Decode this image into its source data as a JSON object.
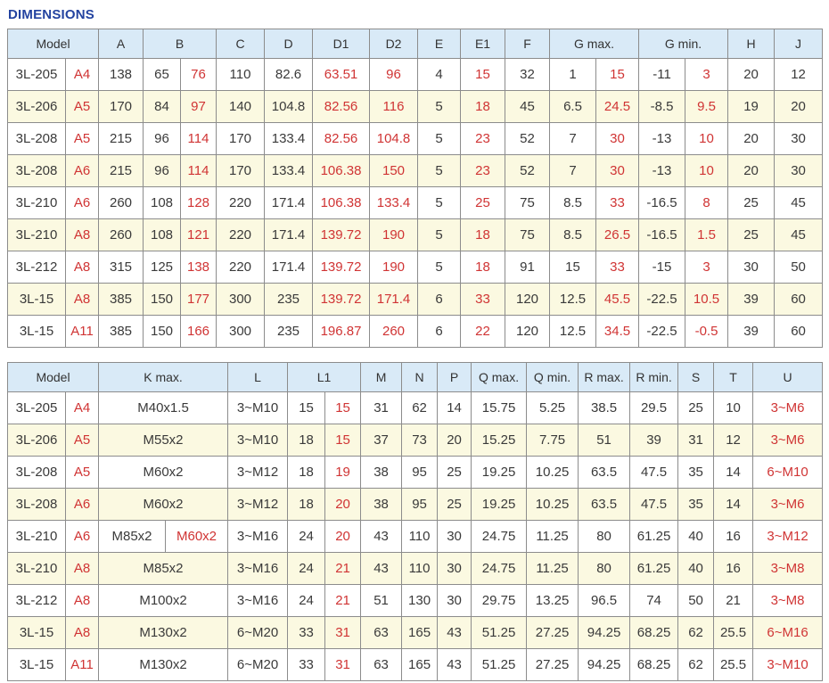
{
  "page": {
    "title": "DIMENSIONS"
  },
  "colors": {
    "title_blue": "#2343A0",
    "header_bg": "#D9EAF7",
    "row_alt_bg": "#FBF9E1",
    "border": "#8C8C8C",
    "text": "#3A3A3A",
    "highlight_red": "#D03434"
  },
  "table1": {
    "header": [
      {
        "label": "Model",
        "colspan": 2
      },
      {
        "label": "A"
      },
      {
        "label": "B",
        "colspan": 2
      },
      {
        "label": "C"
      },
      {
        "label": "D"
      },
      {
        "label": "D1"
      },
      {
        "label": "D2"
      },
      {
        "label": "E"
      },
      {
        "label": "E1"
      },
      {
        "label": "F"
      },
      {
        "label": "G max.",
        "colspan": 2
      },
      {
        "label": "G min.",
        "colspan": 2
      },
      {
        "label": "H"
      },
      {
        "label": "J"
      }
    ],
    "rows": [
      [
        {
          "t": "3L-205"
        },
        {
          "t": "A4",
          "red": true
        },
        {
          "t": "138"
        },
        {
          "t": "65"
        },
        {
          "t": "76",
          "red": true
        },
        {
          "t": "110"
        },
        {
          "t": "82.6"
        },
        {
          "t": "63.51",
          "red": true
        },
        {
          "t": "96",
          "red": true
        },
        {
          "t": "4"
        },
        {
          "t": "15",
          "red": true
        },
        {
          "t": "32"
        },
        {
          "t": "1"
        },
        {
          "t": "15",
          "red": true
        },
        {
          "t": "-11"
        },
        {
          "t": "3",
          "red": true
        },
        {
          "t": "20"
        },
        {
          "t": "12"
        }
      ],
      [
        {
          "t": "3L-206"
        },
        {
          "t": "A5",
          "red": true
        },
        {
          "t": "170"
        },
        {
          "t": "84"
        },
        {
          "t": "97",
          "red": true
        },
        {
          "t": "140"
        },
        {
          "t": "104.8"
        },
        {
          "t": "82.56",
          "red": true
        },
        {
          "t": "116",
          "red": true
        },
        {
          "t": "5"
        },
        {
          "t": "18",
          "red": true
        },
        {
          "t": "45"
        },
        {
          "t": "6.5"
        },
        {
          "t": "24.5",
          "red": true
        },
        {
          "t": "-8.5"
        },
        {
          "t": "9.5",
          "red": true
        },
        {
          "t": "19"
        },
        {
          "t": "20"
        }
      ],
      [
        {
          "t": "3L-208"
        },
        {
          "t": "A5",
          "red": true
        },
        {
          "t": "215"
        },
        {
          "t": "96"
        },
        {
          "t": "114",
          "red": true
        },
        {
          "t": "170"
        },
        {
          "t": "133.4"
        },
        {
          "t": "82.56",
          "red": true
        },
        {
          "t": "104.8",
          "red": true
        },
        {
          "t": "5"
        },
        {
          "t": "23",
          "red": true
        },
        {
          "t": "52"
        },
        {
          "t": "7"
        },
        {
          "t": "30",
          "red": true
        },
        {
          "t": "-13"
        },
        {
          "t": "10",
          "red": true
        },
        {
          "t": "20"
        },
        {
          "t": "30"
        }
      ],
      [
        {
          "t": "3L-208"
        },
        {
          "t": "A6",
          "red": true
        },
        {
          "t": "215"
        },
        {
          "t": "96"
        },
        {
          "t": "114",
          "red": true
        },
        {
          "t": "170"
        },
        {
          "t": "133.4"
        },
        {
          "t": "106.38",
          "red": true
        },
        {
          "t": "150",
          "red": true
        },
        {
          "t": "5"
        },
        {
          "t": "23",
          "red": true
        },
        {
          "t": "52"
        },
        {
          "t": "7"
        },
        {
          "t": "30",
          "red": true
        },
        {
          "t": "-13"
        },
        {
          "t": "10",
          "red": true
        },
        {
          "t": "20"
        },
        {
          "t": "30"
        }
      ],
      [
        {
          "t": "3L-210"
        },
        {
          "t": "A6",
          "red": true
        },
        {
          "t": "260"
        },
        {
          "t": "108"
        },
        {
          "t": "128",
          "red": true
        },
        {
          "t": "220"
        },
        {
          "t": "171.4"
        },
        {
          "t": "106.38",
          "red": true
        },
        {
          "t": "133.4",
          "red": true
        },
        {
          "t": "5"
        },
        {
          "t": "25",
          "red": true
        },
        {
          "t": "75"
        },
        {
          "t": "8.5"
        },
        {
          "t": "33",
          "red": true
        },
        {
          "t": "-16.5"
        },
        {
          "t": "8",
          "red": true
        },
        {
          "t": "25"
        },
        {
          "t": "45"
        }
      ],
      [
        {
          "t": "3L-210"
        },
        {
          "t": "A8",
          "red": true
        },
        {
          "t": "260"
        },
        {
          "t": "108"
        },
        {
          "t": "121",
          "red": true
        },
        {
          "t": "220"
        },
        {
          "t": "171.4"
        },
        {
          "t": "139.72",
          "red": true
        },
        {
          "t": "190",
          "red": true
        },
        {
          "t": "5"
        },
        {
          "t": "18",
          "red": true
        },
        {
          "t": "75"
        },
        {
          "t": "8.5"
        },
        {
          "t": "26.5",
          "red": true
        },
        {
          "t": "-16.5"
        },
        {
          "t": "1.5",
          "red": true
        },
        {
          "t": "25"
        },
        {
          "t": "45"
        }
      ],
      [
        {
          "t": "3L-212"
        },
        {
          "t": "A8",
          "red": true
        },
        {
          "t": "315"
        },
        {
          "t": "125"
        },
        {
          "t": "138",
          "red": true
        },
        {
          "t": "220"
        },
        {
          "t": "171.4"
        },
        {
          "t": "139.72",
          "red": true
        },
        {
          "t": "190",
          "red": true
        },
        {
          "t": "5"
        },
        {
          "t": "18",
          "red": true
        },
        {
          "t": "91"
        },
        {
          "t": "15"
        },
        {
          "t": "33",
          "red": true
        },
        {
          "t": "-15"
        },
        {
          "t": "3",
          "red": true
        },
        {
          "t": "30"
        },
        {
          "t": "50"
        }
      ],
      [
        {
          "t": "3L-15"
        },
        {
          "t": "A8",
          "red": true
        },
        {
          "t": "385"
        },
        {
          "t": "150"
        },
        {
          "t": "177",
          "red": true
        },
        {
          "t": "300"
        },
        {
          "t": "235"
        },
        {
          "t": "139.72",
          "red": true
        },
        {
          "t": "171.4",
          "red": true
        },
        {
          "t": "6"
        },
        {
          "t": "33",
          "red": true
        },
        {
          "t": "120"
        },
        {
          "t": "12.5"
        },
        {
          "t": "45.5",
          "red": true
        },
        {
          "t": "-22.5"
        },
        {
          "t": "10.5",
          "red": true
        },
        {
          "t": "39"
        },
        {
          "t": "60"
        }
      ],
      [
        {
          "t": "3L-15"
        },
        {
          "t": "A11",
          "red": true
        },
        {
          "t": "385"
        },
        {
          "t": "150"
        },
        {
          "t": "166",
          "red": true
        },
        {
          "t": "300"
        },
        {
          "t": "235"
        },
        {
          "t": "196.87",
          "red": true
        },
        {
          "t": "260",
          "red": true
        },
        {
          "t": "6"
        },
        {
          "t": "22",
          "red": true
        },
        {
          "t": "120"
        },
        {
          "t": "12.5"
        },
        {
          "t": "34.5",
          "red": true
        },
        {
          "t": "-22.5"
        },
        {
          "t": "-0.5",
          "red": true
        },
        {
          "t": "39"
        },
        {
          "t": "60"
        }
      ]
    ]
  },
  "table2": {
    "header": [
      {
        "label": "Model",
        "colspan": 2
      },
      {
        "label": "K max.",
        "colspan": 2
      },
      {
        "label": "L"
      },
      {
        "label": "L1",
        "colspan": 2
      },
      {
        "label": "M"
      },
      {
        "label": "N"
      },
      {
        "label": "P"
      },
      {
        "label": "Q max."
      },
      {
        "label": "Q min."
      },
      {
        "label": "R max."
      },
      {
        "label": "R min."
      },
      {
        "label": "S"
      },
      {
        "label": "T"
      },
      {
        "label": "U"
      }
    ],
    "rows": [
      [
        {
          "t": "3L-205"
        },
        {
          "t": "A4",
          "red": true
        },
        {
          "t": "M40x1.5",
          "span": 2
        },
        {
          "t": "3~M10"
        },
        {
          "t": "15"
        },
        {
          "t": "15",
          "red": true
        },
        {
          "t": "31"
        },
        {
          "t": "62"
        },
        {
          "t": "14"
        },
        {
          "t": "15.75"
        },
        {
          "t": "5.25"
        },
        {
          "t": "38.5"
        },
        {
          "t": "29.5"
        },
        {
          "t": "25"
        },
        {
          "t": "10"
        },
        {
          "t": "3~M6",
          "red": true
        }
      ],
      [
        {
          "t": "3L-206"
        },
        {
          "t": "A5",
          "red": true
        },
        {
          "t": "M55x2",
          "span": 2
        },
        {
          "t": "3~M10"
        },
        {
          "t": "18"
        },
        {
          "t": "15",
          "red": true
        },
        {
          "t": "37"
        },
        {
          "t": "73"
        },
        {
          "t": "20"
        },
        {
          "t": "15.25"
        },
        {
          "t": "7.75"
        },
        {
          "t": "51"
        },
        {
          "t": "39"
        },
        {
          "t": "31"
        },
        {
          "t": "12"
        },
        {
          "t": "3~M6",
          "red": true
        }
      ],
      [
        {
          "t": "3L-208"
        },
        {
          "t": "A5",
          "red": true
        },
        {
          "t": "M60x2",
          "span": 2
        },
        {
          "t": "3~M12"
        },
        {
          "t": "18"
        },
        {
          "t": "19",
          "red": true
        },
        {
          "t": "38"
        },
        {
          "t": "95"
        },
        {
          "t": "25"
        },
        {
          "t": "19.25"
        },
        {
          "t": "10.25"
        },
        {
          "t": "63.5"
        },
        {
          "t": "47.5"
        },
        {
          "t": "35"
        },
        {
          "t": "14"
        },
        {
          "t": "6~M10",
          "red": true
        }
      ],
      [
        {
          "t": "3L-208"
        },
        {
          "t": "A6",
          "red": true
        },
        {
          "t": "M60x2",
          "span": 2
        },
        {
          "t": "3~M12"
        },
        {
          "t": "18"
        },
        {
          "t": "20",
          "red": true
        },
        {
          "t": "38"
        },
        {
          "t": "95"
        },
        {
          "t": "25"
        },
        {
          "t": "19.25"
        },
        {
          "t": "10.25"
        },
        {
          "t": "63.5"
        },
        {
          "t": "47.5"
        },
        {
          "t": "35"
        },
        {
          "t": "14"
        },
        {
          "t": "3~M6",
          "red": true
        }
      ],
      [
        {
          "t": "3L-210"
        },
        {
          "t": "A6",
          "red": true
        },
        {
          "t": "M85x2"
        },
        {
          "t": "M60x2",
          "red": true
        },
        {
          "t": "3~M16"
        },
        {
          "t": "24"
        },
        {
          "t": "20",
          "red": true
        },
        {
          "t": "43"
        },
        {
          "t": "110"
        },
        {
          "t": "30"
        },
        {
          "t": "24.75"
        },
        {
          "t": "11.25"
        },
        {
          "t": "80"
        },
        {
          "t": "61.25"
        },
        {
          "t": "40"
        },
        {
          "t": "16"
        },
        {
          "t": "3~M12",
          "red": true
        }
      ],
      [
        {
          "t": "3L-210"
        },
        {
          "t": "A8",
          "red": true
        },
        {
          "t": "M85x2",
          "span": 2
        },
        {
          "t": "3~M16"
        },
        {
          "t": "24"
        },
        {
          "t": "21",
          "red": true
        },
        {
          "t": "43"
        },
        {
          "t": "110"
        },
        {
          "t": "30"
        },
        {
          "t": "24.75"
        },
        {
          "t": "11.25"
        },
        {
          "t": "80"
        },
        {
          "t": "61.25"
        },
        {
          "t": "40"
        },
        {
          "t": "16"
        },
        {
          "t": "3~M8",
          "red": true
        }
      ],
      [
        {
          "t": "3L-212"
        },
        {
          "t": "A8",
          "red": true
        },
        {
          "t": "M100x2",
          "span": 2
        },
        {
          "t": "3~M16"
        },
        {
          "t": "24"
        },
        {
          "t": "21",
          "red": true
        },
        {
          "t": "51"
        },
        {
          "t": "130"
        },
        {
          "t": "30"
        },
        {
          "t": "29.75"
        },
        {
          "t": "13.25"
        },
        {
          "t": "96.5"
        },
        {
          "t": "74"
        },
        {
          "t": "50"
        },
        {
          "t": "21"
        },
        {
          "t": "3~M8",
          "red": true
        }
      ],
      [
        {
          "t": "3L-15"
        },
        {
          "t": "A8",
          "red": true
        },
        {
          "t": "M130x2",
          "span": 2
        },
        {
          "t": "6~M20"
        },
        {
          "t": "33"
        },
        {
          "t": "31",
          "red": true
        },
        {
          "t": "63"
        },
        {
          "t": "165"
        },
        {
          "t": "43"
        },
        {
          "t": "51.25"
        },
        {
          "t": "27.25"
        },
        {
          "t": "94.25"
        },
        {
          "t": "68.25"
        },
        {
          "t": "62"
        },
        {
          "t": "25.5"
        },
        {
          "t": "6~M16",
          "red": true
        }
      ],
      [
        {
          "t": "3L-15"
        },
        {
          "t": "A11",
          "red": true
        },
        {
          "t": "M130x2",
          "span": 2
        },
        {
          "t": "6~M20"
        },
        {
          "t": "33"
        },
        {
          "t": "31",
          "red": true
        },
        {
          "t": "63"
        },
        {
          "t": "165"
        },
        {
          "t": "43"
        },
        {
          "t": "51.25"
        },
        {
          "t": "27.25"
        },
        {
          "t": "94.25"
        },
        {
          "t": "68.25"
        },
        {
          "t": "62"
        },
        {
          "t": "25.5"
        },
        {
          "t": "3~M10",
          "red": true
        }
      ]
    ]
  }
}
